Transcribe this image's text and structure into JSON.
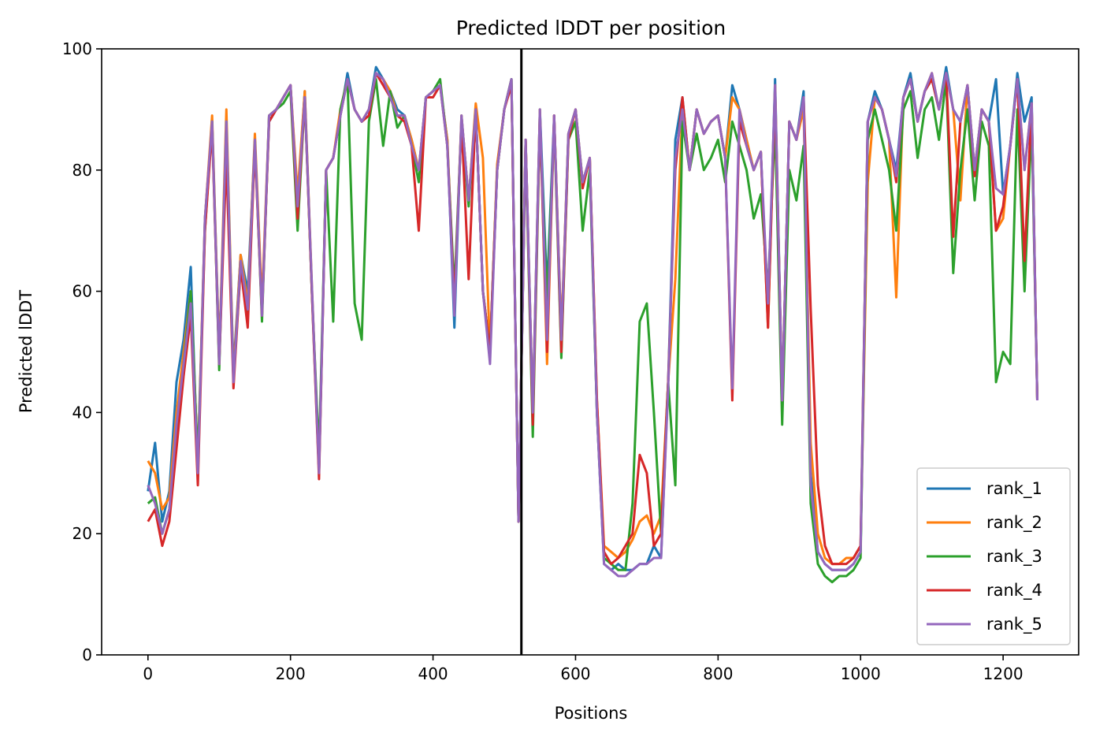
{
  "chart_data": {
    "type": "line",
    "title": "Predicted lDDT per position",
    "xlabel": "Positions",
    "ylabel": "Predicted lDDT",
    "xlim": [
      -65,
      1306
    ],
    "ylim": [
      0,
      100
    ],
    "xticks": [
      0,
      200,
      400,
      600,
      800,
      1000,
      1200
    ],
    "yticks": [
      0,
      20,
      40,
      60,
      80,
      100
    ],
    "grid": false,
    "legend_position": "lower right",
    "vline_x": 524,
    "x": [
      0,
      10,
      20,
      30,
      40,
      50,
      60,
      70,
      80,
      90,
      100,
      110,
      120,
      130,
      140,
      150,
      160,
      170,
      180,
      190,
      200,
      210,
      220,
      230,
      240,
      250,
      260,
      270,
      280,
      290,
      300,
      310,
      320,
      330,
      340,
      350,
      360,
      370,
      380,
      390,
      400,
      410,
      420,
      430,
      440,
      450,
      460,
      470,
      480,
      490,
      500,
      510,
      520,
      530,
      540,
      550,
      560,
      570,
      580,
      590,
      600,
      610,
      620,
      630,
      640,
      650,
      660,
      670,
      680,
      690,
      700,
      710,
      720,
      730,
      740,
      750,
      760,
      770,
      780,
      790,
      800,
      810,
      820,
      830,
      840,
      850,
      860,
      870,
      880,
      890,
      900,
      910,
      920,
      930,
      940,
      950,
      960,
      970,
      980,
      990,
      1000,
      1010,
      1020,
      1030,
      1040,
      1050,
      1060,
      1070,
      1080,
      1090,
      1100,
      1110,
      1120,
      1130,
      1140,
      1150,
      1160,
      1170,
      1180,
      1190,
      1200,
      1210,
      1220,
      1230,
      1240,
      1248
    ],
    "series": [
      {
        "name": "rank_1",
        "color": "#1f77b4",
        "values": [
          27,
          35,
          22,
          27,
          45,
          52,
          64,
          30,
          72,
          88,
          50,
          85,
          47,
          66,
          60,
          85,
          57,
          88,
          90,
          92,
          94,
          75,
          93,
          60,
          30,
          80,
          82,
          89,
          96,
          90,
          88,
          90,
          97,
          95,
          93,
          90,
          89,
          85,
          80,
          92,
          93,
          94,
          85,
          54,
          89,
          75,
          90,
          60,
          50,
          80,
          90,
          95,
          22,
          85,
          40,
          90,
          60,
          89,
          52,
          86,
          90,
          78,
          82,
          40,
          15,
          14,
          15,
          14,
          14,
          15,
          15,
          18,
          16,
          45,
          85,
          92,
          80,
          90,
          86,
          88,
          89,
          82,
          94,
          90,
          85,
          80,
          83,
          55,
          95,
          42,
          88,
          85,
          93,
          30,
          17,
          15,
          14,
          14,
          14,
          15,
          17,
          88,
          93,
          90,
          85,
          80,
          92,
          96,
          88,
          93,
          95,
          90,
          97,
          90,
          88,
          94,
          80,
          90,
          88,
          95,
          76,
          84,
          96,
          88,
          92,
          42
        ]
      },
      {
        "name": "rank_2",
        "color": "#ff7f0e",
        "values": [
          32,
          30,
          24,
          26,
          40,
          50,
          60,
          32,
          72,
          89,
          49,
          90,
          46,
          66,
          58,
          86,
          58,
          89,
          90,
          92,
          94,
          76,
          93,
          61,
          31,
          80,
          82,
          90,
          95,
          90,
          88,
          90,
          96,
          95,
          93,
          89,
          89,
          85,
          80,
          92,
          93,
          94,
          85,
          58,
          89,
          75,
          91,
          82,
          50,
          81,
          90,
          95,
          22,
          85,
          40,
          90,
          48,
          89,
          53,
          86,
          90,
          78,
          82,
          42,
          18,
          17,
          16,
          17,
          19,
          22,
          23,
          20,
          23,
          45,
          62,
          90,
          80,
          90,
          86,
          88,
          89,
          82,
          92,
          90,
          85,
          80,
          83,
          54,
          94,
          42,
          88,
          85,
          90,
          35,
          20,
          16,
          15,
          15,
          16,
          16,
          18,
          78,
          92,
          90,
          85,
          59,
          92,
          95,
          88,
          93,
          96,
          90,
          96,
          90,
          75,
          94,
          80,
          90,
          88,
          70,
          72,
          84,
          95,
          80,
          91,
          42
        ]
      },
      {
        "name": "rank_3",
        "color": "#2ca02c",
        "values": [
          25,
          26,
          20,
          24,
          35,
          48,
          60,
          32,
          70,
          88,
          47,
          88,
          45,
          64,
          56,
          85,
          55,
          89,
          90,
          91,
          93,
          70,
          92,
          60,
          33,
          80,
          55,
          90,
          95,
          58,
          52,
          88,
          95,
          84,
          93,
          87,
          89,
          84,
          78,
          92,
          93,
          95,
          84,
          60,
          88,
          74,
          90,
          60,
          50,
          80,
          90,
          95,
          22,
          84,
          36,
          88,
          58,
          88,
          49,
          85,
          88,
          70,
          80,
          40,
          16,
          15,
          14,
          14,
          25,
          55,
          58,
          40,
          20,
          45,
          28,
          88,
          80,
          86,
          80,
          82,
          85,
          78,
          88,
          84,
          80,
          72,
          76,
          60,
          88,
          38,
          80,
          75,
          84,
          25,
          15,
          13,
          12,
          13,
          13,
          14,
          16,
          85,
          90,
          85,
          80,
          70,
          90,
          93,
          82,
          90,
          92,
          85,
          95,
          63,
          80,
          90,
          75,
          88,
          84,
          45,
          50,
          48,
          90,
          60,
          88,
          42
        ]
      },
      {
        "name": "rank_4",
        "color": "#d62728",
        "values": [
          22,
          24,
          18,
          22,
          34,
          46,
          56,
          28,
          70,
          87,
          48,
          82,
          44,
          64,
          54,
          84,
          56,
          88,
          90,
          92,
          94,
          72,
          92,
          60,
          29,
          80,
          82,
          89,
          95,
          90,
          88,
          89,
          96,
          94,
          92,
          89,
          88,
          84,
          70,
          92,
          92,
          94,
          84,
          58,
          88,
          62,
          90,
          60,
          50,
          80,
          90,
          94,
          22,
          85,
          38,
          89,
          50,
          89,
          50,
          85,
          90,
          77,
          82,
          42,
          17,
          15,
          16,
          18,
          20,
          33,
          30,
          18,
          20,
          45,
          80,
          92,
          80,
          90,
          86,
          88,
          89,
          82,
          42,
          88,
          84,
          80,
          83,
          54,
          93,
          42,
          88,
          85,
          92,
          57,
          28,
          18,
          15,
          15,
          15,
          16,
          18,
          88,
          92,
          90,
          85,
          78,
          92,
          95,
          88,
          93,
          95,
          90,
          96,
          69,
          88,
          94,
          79,
          90,
          88,
          70,
          74,
          84,
          95,
          65,
          91,
          42
        ]
      },
      {
        "name": "rank_5",
        "color": "#9467bd",
        "values": [
          28,
          25,
          20,
          24,
          38,
          48,
          58,
          30,
          72,
          88,
          48,
          88,
          45,
          65,
          57,
          85,
          56,
          89,
          90,
          92,
          94,
          74,
          92,
          61,
          30,
          80,
          82,
          89,
          95,
          90,
          88,
          90,
          96,
          95,
          92,
          89,
          89,
          84,
          80,
          92,
          93,
          94,
          84,
          56,
          89,
          75,
          90,
          60,
          48,
          80,
          90,
          95,
          22,
          85,
          40,
          90,
          52,
          89,
          52,
          86,
          90,
          78,
          82,
          40,
          15,
          14,
          13,
          13,
          14,
          15,
          15,
          16,
          16,
          44,
          82,
          90,
          80,
          90,
          86,
          88,
          89,
          82,
          44,
          90,
          84,
          80,
          83,
          58,
          94,
          42,
          88,
          85,
          92,
          28,
          17,
          15,
          14,
          14,
          14,
          15,
          17,
          88,
          92,
          90,
          85,
          79,
          92,
          95,
          88,
          93,
          96,
          90,
          96,
          90,
          88,
          94,
          80,
          90,
          88,
          77,
          76,
          84,
          95,
          80,
          91,
          42
        ]
      }
    ]
  }
}
